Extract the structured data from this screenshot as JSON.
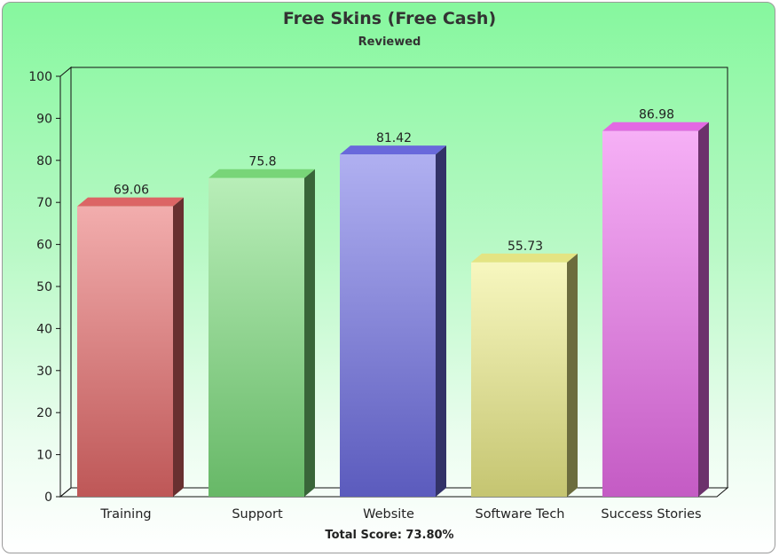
{
  "chart_data": {
    "type": "bar",
    "title": "Free Skins (Free Cash)",
    "subtitle": "Reviewed",
    "categories": [
      "Training",
      "Support",
      "Website",
      "Software Tech",
      "Success Stories"
    ],
    "values": [
      69.06,
      75.8,
      81.42,
      55.73,
      86.98
    ],
    "value_labels": [
      "69.06",
      "75.8",
      "81.42",
      "55.73",
      "86.98"
    ],
    "colors": [
      "#e86a6a",
      "#7ee07e",
      "#6f6fe6",
      "#f0f08a",
      "#ef6fef"
    ],
    "ylim": [
      0,
      100
    ],
    "yticks": [
      0,
      10,
      20,
      30,
      40,
      50,
      60,
      70,
      80,
      90,
      100
    ],
    "xlabel": "",
    "ylabel": "",
    "grid": false,
    "style": "3d"
  },
  "footer": {
    "total_score": "Total Score: 73.80%"
  }
}
